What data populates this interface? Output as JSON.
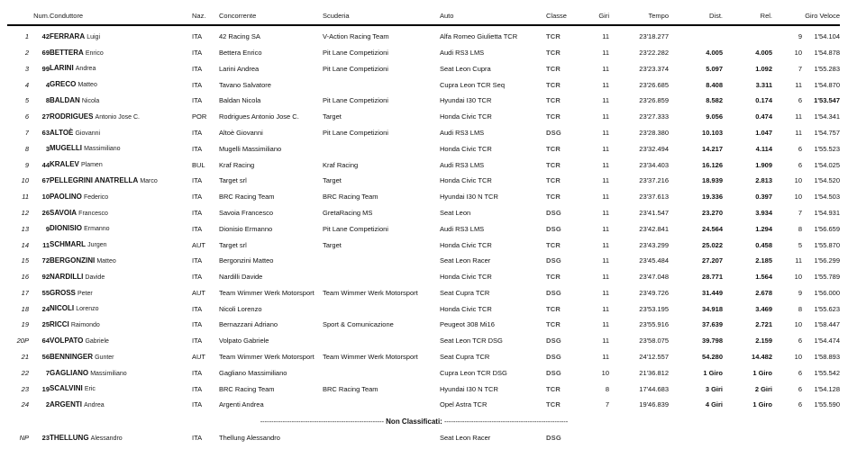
{
  "table": {
    "headers": {
      "pos": "",
      "num": "Num.",
      "driver": "Conduttore",
      "naz": "Naz.",
      "concorrente": "Concorrente",
      "scuderia": "Scuderia",
      "auto": "Auto",
      "classe": "Classe",
      "giri": "Giri",
      "tempo": "Tempo",
      "dist": "Dist.",
      "rel": "Rel.",
      "giro_veloce": "Giro Veloce"
    },
    "rows": [
      {
        "pos": "1",
        "num": "42",
        "surname": "FERRARA",
        "name": "Luigi",
        "naz": "ITA",
        "concorrente": "42 Racing SA",
        "scuderia": "V-Action Racing Team",
        "auto": "Alfa Romeo Giulietta TCR",
        "classe": "TCR",
        "giri": "11",
        "tempo": "23'18.277",
        "dist": "",
        "rel": "",
        "gv_lap": "9",
        "gv_time": "1'54.104",
        "gv_bold": false
      },
      {
        "pos": "2",
        "num": "69",
        "surname": "BETTERA",
        "name": "Enrico",
        "naz": "ITA",
        "concorrente": "Bettera Enrico",
        "scuderia": "Pit Lane Competizioni",
        "auto": "Audi RS3 LMS",
        "classe": "TCR",
        "giri": "11",
        "tempo": "23'22.282",
        "dist": "4.005",
        "rel": "4.005",
        "gv_lap": "10",
        "gv_time": "1'54.878",
        "gv_bold": false
      },
      {
        "pos": "3",
        "num": "99",
        "surname": "LARINI",
        "name": "Andrea",
        "naz": "ITA",
        "concorrente": "Larini Andrea",
        "scuderia": "Pit Lane Competizioni",
        "auto": "Seat Leon Cupra",
        "classe": "TCR",
        "giri": "11",
        "tempo": "23'23.374",
        "dist": "5.097",
        "rel": "1.092",
        "gv_lap": "7",
        "gv_time": "1'55.283",
        "gv_bold": false
      },
      {
        "pos": "4",
        "num": "4",
        "surname": "GRECO",
        "name": "Matteo",
        "naz": "ITA",
        "concorrente": "Tavano Salvatore",
        "scuderia": "",
        "auto": "Cupra Leon TCR Seq",
        "classe": "TCR",
        "giri": "11",
        "tempo": "23'26.685",
        "dist": "8.408",
        "rel": "3.311",
        "gv_lap": "11",
        "gv_time": "1'54.870",
        "gv_bold": false
      },
      {
        "pos": "5",
        "num": "8",
        "surname": "BALDAN",
        "name": "Nicola",
        "naz": "ITA",
        "concorrente": "Baldan Nicola",
        "scuderia": "Pit Lane Competizioni",
        "auto": "Hyundai I30 TCR",
        "classe": "TCR",
        "giri": "11",
        "tempo": "23'26.859",
        "dist": "8.582",
        "rel": "0.174",
        "gv_lap": "6",
        "gv_time": "1'53.547",
        "gv_bold": true
      },
      {
        "pos": "6",
        "num": "27",
        "surname": "RODRIGUES",
        "name": "Antonio Jose C.",
        "naz": "POR",
        "concorrente": "Rodrigues Antonio Jose C.",
        "scuderia": "Target",
        "auto": "Honda Civic TCR",
        "classe": "TCR",
        "giri": "11",
        "tempo": "23'27.333",
        "dist": "9.056",
        "rel": "0.474",
        "gv_lap": "11",
        "gv_time": "1'54.341",
        "gv_bold": false
      },
      {
        "pos": "7",
        "num": "63",
        "surname": "ALTOÈ",
        "name": "Giovanni",
        "naz": "ITA",
        "concorrente": "Altoè Giovanni",
        "scuderia": "Pit Lane Competizioni",
        "auto": "Audi RS3 LMS",
        "classe": "DSG",
        "giri": "11",
        "tempo": "23'28.380",
        "dist": "10.103",
        "rel": "1.047",
        "gv_lap": "11",
        "gv_time": "1'54.757",
        "gv_bold": false
      },
      {
        "pos": "8",
        "num": "3",
        "surname": "MUGELLI",
        "name": "Massimiliano",
        "naz": "ITA",
        "concorrente": "Mugelli Massimiliano",
        "scuderia": "",
        "auto": "Honda Civic TCR",
        "classe": "TCR",
        "giri": "11",
        "tempo": "23'32.494",
        "dist": "14.217",
        "rel": "4.114",
        "gv_lap": "6",
        "gv_time": "1'55.523",
        "gv_bold": false
      },
      {
        "pos": "9",
        "num": "44",
        "surname": "KRALEV",
        "name": "Plamen",
        "naz": "BUL",
        "concorrente": "Kraf Racing",
        "scuderia": "Kraf Racing",
        "auto": "Audi RS3 LMS",
        "classe": "TCR",
        "giri": "11",
        "tempo": "23'34.403",
        "dist": "16.126",
        "rel": "1.909",
        "gv_lap": "6",
        "gv_time": "1'54.025",
        "gv_bold": false
      },
      {
        "pos": "10",
        "num": "67",
        "surname": "PELLEGRINI ANATRELLA",
        "name": "Marco",
        "naz": "ITA",
        "concorrente": "Target srl",
        "scuderia": "Target",
        "auto": "Honda Civic TCR",
        "classe": "TCR",
        "giri": "11",
        "tempo": "23'37.216",
        "dist": "18.939",
        "rel": "2.813",
        "gv_lap": "10",
        "gv_time": "1'54.520",
        "gv_bold": false
      },
      {
        "pos": "11",
        "num": "10",
        "surname": "PAOLINO",
        "name": "Federico",
        "naz": "ITA",
        "concorrente": "BRC Racing Team",
        "scuderia": "BRC Racing Team",
        "auto": "Hyundai I30 N TCR",
        "classe": "TCR",
        "giri": "11",
        "tempo": "23'37.613",
        "dist": "19.336",
        "rel": "0.397",
        "gv_lap": "10",
        "gv_time": "1'54.503",
        "gv_bold": false
      },
      {
        "pos": "12",
        "num": "26",
        "surname": "SAVOIA",
        "name": "Francesco",
        "naz": "ITA",
        "concorrente": "Savoia Francesco",
        "scuderia": "GretaRacing MS",
        "auto": "Seat Leon",
        "classe": "DSG",
        "giri": "11",
        "tempo": "23'41.547",
        "dist": "23.270",
        "rel": "3.934",
        "gv_lap": "7",
        "gv_time": "1'54.931",
        "gv_bold": false
      },
      {
        "pos": "13",
        "num": "9",
        "surname": "DIONISIO",
        "name": "Ermanno",
        "naz": "ITA",
        "concorrente": "Dionisio Ermanno",
        "scuderia": "Pit Lane Competizioni",
        "auto": "Audi RS3 LMS",
        "classe": "DSG",
        "giri": "11",
        "tempo": "23'42.841",
        "dist": "24.564",
        "rel": "1.294",
        "gv_lap": "8",
        "gv_time": "1'56.659",
        "gv_bold": false
      },
      {
        "pos": "14",
        "num": "11",
        "surname": "SCHMARL",
        "name": "Jurgen",
        "naz": "AUT",
        "concorrente": "Target srl",
        "scuderia": "Target",
        "auto": "Honda Civic TCR",
        "classe": "TCR",
        "giri": "11",
        "tempo": "23'43.299",
        "dist": "25.022",
        "rel": "0.458",
        "gv_lap": "5",
        "gv_time": "1'55.870",
        "gv_bold": false
      },
      {
        "pos": "15",
        "num": "72",
        "surname": "BERGONZINI",
        "name": "Matteo",
        "naz": "ITA",
        "concorrente": "Bergonzini Matteo",
        "scuderia": "",
        "auto": "Seat Leon Racer",
        "classe": "DSG",
        "giri": "11",
        "tempo": "23'45.484",
        "dist": "27.207",
        "rel": "2.185",
        "gv_lap": "11",
        "gv_time": "1'56.299",
        "gv_bold": false
      },
      {
        "pos": "16",
        "num": "92",
        "surname": "NARDILLI",
        "name": "Davide",
        "naz": "ITA",
        "concorrente": "Nardilli Davide",
        "scuderia": "",
        "auto": "Honda Civic TCR",
        "classe": "TCR",
        "giri": "11",
        "tempo": "23'47.048",
        "dist": "28.771",
        "rel": "1.564",
        "gv_lap": "10",
        "gv_time": "1'55.789",
        "gv_bold": false
      },
      {
        "pos": "17",
        "num": "55",
        "surname": "GROSS",
        "name": "Peter",
        "naz": "AUT",
        "concorrente": "Team Wimmer Werk Motorsport",
        "scuderia": "Team Wimmer Werk Motorsport",
        "auto": "Seat Cupra TCR",
        "classe": "DSG",
        "giri": "11",
        "tempo": "23'49.726",
        "dist": "31.449",
        "rel": "2.678",
        "gv_lap": "9",
        "gv_time": "1'56.000",
        "gv_bold": false
      },
      {
        "pos": "18",
        "num": "24",
        "surname": "NICOLI",
        "name": "Lorenzo",
        "naz": "ITA",
        "concorrente": "Nicoli Lorenzo",
        "scuderia": "",
        "auto": "Honda Civic TCR",
        "classe": "TCR",
        "giri": "11",
        "tempo": "23'53.195",
        "dist": "34.918",
        "rel": "3.469",
        "gv_lap": "8",
        "gv_time": "1'55.623",
        "gv_bold": false
      },
      {
        "pos": "19",
        "num": "25",
        "surname": "RICCI",
        "name": "Raimondo",
        "naz": "ITA",
        "concorrente": "Bernazzani Adriano",
        "scuderia": "Sport & Comunicazione",
        "auto": "Peugeot 308 Mi16",
        "classe": "TCR",
        "giri": "11",
        "tempo": "23'55.916",
        "dist": "37.639",
        "rel": "2.721",
        "gv_lap": "10",
        "gv_time": "1'58.447",
        "gv_bold": false
      },
      {
        "pos": "20P",
        "num": "64",
        "surname": "VOLPATO",
        "name": "Gabriele",
        "naz": "ITA",
        "concorrente": "Volpato Gabriele",
        "scuderia": "",
        "auto": "Seat Leon TCR DSG",
        "classe": "DSG",
        "giri": "11",
        "tempo": "23'58.075",
        "dist": "39.798",
        "rel": "2.159",
        "gv_lap": "6",
        "gv_time": "1'54.474",
        "gv_bold": false
      },
      {
        "pos": "21",
        "num": "56",
        "surname": "BENNINGER",
        "name": "Gunter",
        "naz": "AUT",
        "concorrente": "Team Wimmer Werk Motorsport",
        "scuderia": "Team Wimmer Werk Motorsport",
        "auto": "Seat Cupra TCR",
        "classe": "DSG",
        "giri": "11",
        "tempo": "24'12.557",
        "dist": "54.280",
        "rel": "14.482",
        "gv_lap": "10",
        "gv_time": "1'58.893",
        "gv_bold": false
      },
      {
        "pos": "22",
        "num": "7",
        "surname": "GAGLIANO",
        "name": "Massimiliano",
        "naz": "ITA",
        "concorrente": "Gagliano Massimiliano",
        "scuderia": "",
        "auto": "Cupra Leon TCR DSG",
        "classe": "DSG",
        "giri": "10",
        "tempo": "21'36.812",
        "dist": "1 Giro",
        "rel": "1 Giro",
        "gv_lap": "6",
        "gv_time": "1'55.542",
        "gv_bold": false
      },
      {
        "pos": "23",
        "num": "19",
        "surname": "SCALVINI",
        "name": "Eric",
        "naz": "ITA",
        "concorrente": "BRC Racing Team",
        "scuderia": "BRC Racing Team",
        "auto": "Hyundai I30 N TCR",
        "classe": "TCR",
        "giri": "8",
        "tempo": "17'44.683",
        "dist": "3 Giri",
        "rel": "2 Giri",
        "gv_lap": "6",
        "gv_time": "1'54.128",
        "gv_bold": false
      },
      {
        "pos": "24",
        "num": "2",
        "surname": "ARGENTI",
        "name": "Andrea",
        "naz": "ITA",
        "concorrente": "Argenti Andrea",
        "scuderia": "",
        "auto": "Opel Astra TCR",
        "classe": "TCR",
        "giri": "7",
        "tempo": "19'46.839",
        "dist": "4 Giri",
        "rel": "1 Giro",
        "gv_lap": "6",
        "gv_time": "1'55.590",
        "gv_bold": false
      }
    ],
    "separator": {
      "left_dashes": "-------------------------------------------------------",
      "label": "Non Classificati:",
      "right_dashes": "-------------------------------------------------------"
    },
    "np_rows": [
      {
        "pos": "NP",
        "num": "23",
        "surname": "THELLUNG",
        "name": "Alessandro",
        "naz": "ITA",
        "concorrente": "Thellung Alessandro",
        "scuderia": "",
        "auto": "Seat Leon Racer",
        "classe": "DSG",
        "giri": "",
        "tempo": "",
        "dist": "",
        "rel": "",
        "gv_lap": "",
        "gv_time": "",
        "gv_bold": false
      }
    ]
  }
}
